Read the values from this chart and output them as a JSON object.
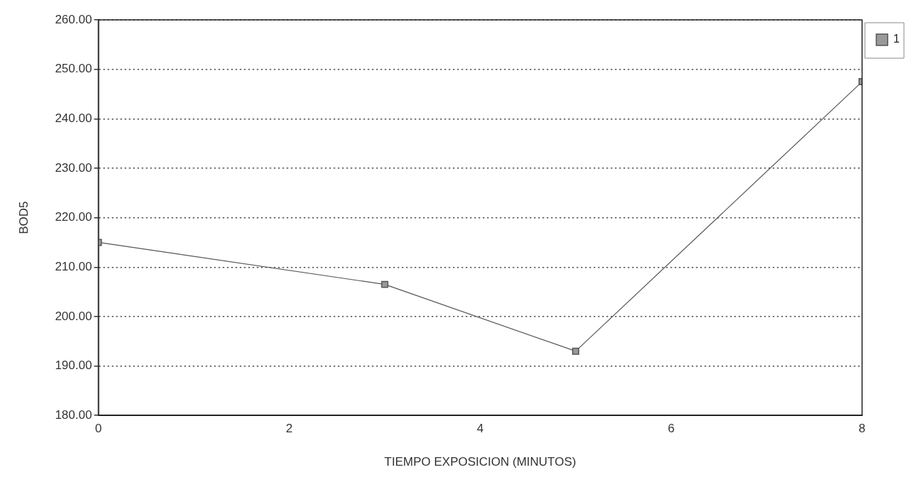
{
  "chart_data": {
    "type": "line",
    "xlabel": "TIEMPO EXPOSICION (MINUTOS)",
    "ylabel": "BOD5",
    "x": [
      0,
      3,
      5,
      8
    ],
    "series": [
      {
        "name": "1",
        "color": "#555555",
        "values": [
          215,
          206.5,
          193,
          247.5
        ]
      }
    ],
    "xlim": [
      0,
      8
    ],
    "xticks": [
      0,
      2,
      4,
      6,
      8
    ],
    "ylim": [
      180,
      260
    ],
    "yticks": [
      {
        "value": 180,
        "label": "180.00"
      },
      {
        "value": 190,
        "label": "190.00"
      },
      {
        "value": 200,
        "label": "200.00"
      },
      {
        "value": 210,
        "label": "210.00"
      },
      {
        "value": 220,
        "label": "220.00"
      },
      {
        "value": 230,
        "label": "230.00"
      },
      {
        "value": 240,
        "label": "240.00"
      },
      {
        "value": 250,
        "label": "250.00"
      },
      {
        "value": 260,
        "label": "260.00"
      }
    ],
    "grid": "y",
    "legend": "top right",
    "marker": "square",
    "line_style": "solid"
  }
}
